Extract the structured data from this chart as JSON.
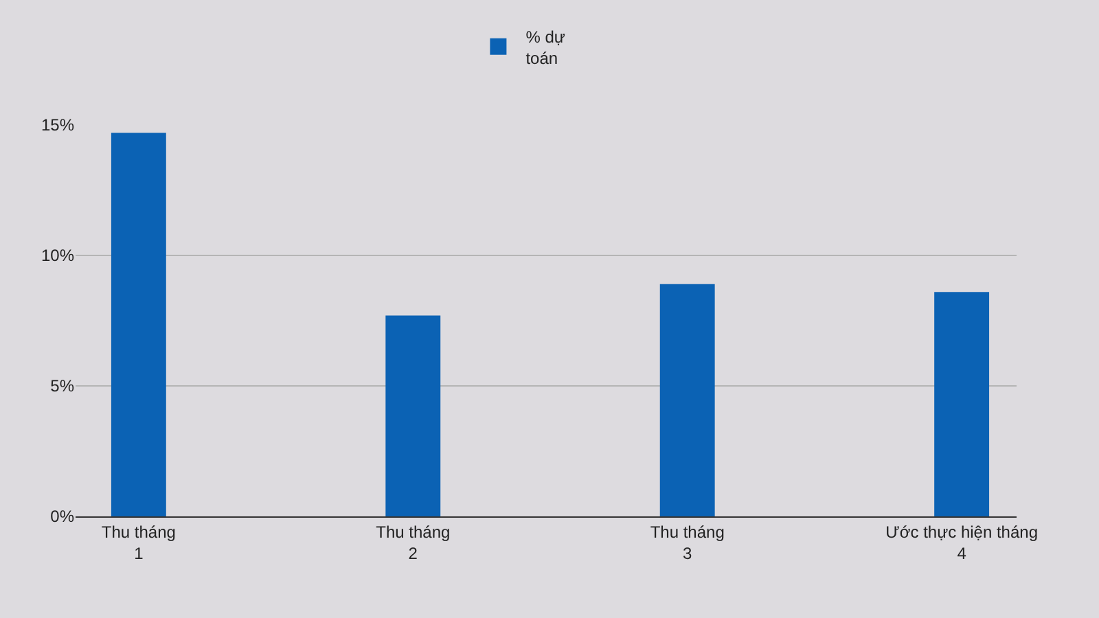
{
  "chart_data": {
    "type": "bar",
    "categories": [
      "Thu tháng 1",
      "Thu tháng 2",
      "Thu tháng 3",
      "Ước thực hiện tháng 4"
    ],
    "series": [
      {
        "name": "% dự toán",
        "color": "#0b62b4",
        "values": [
          14.7,
          7.7,
          8.9,
          8.6
        ]
      }
    ],
    "ylim": [
      0,
      15
    ],
    "yticks": [
      {
        "value": 0,
        "label": "0%"
      },
      {
        "value": 5,
        "label": "5%"
      },
      {
        "value": 10,
        "label": "10%"
      },
      {
        "value": 15,
        "label": "15%"
      }
    ],
    "grid": "y",
    "legend": "top"
  }
}
